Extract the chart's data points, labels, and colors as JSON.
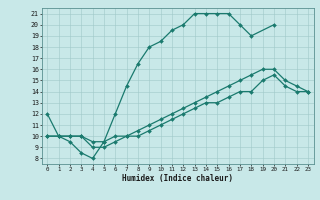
{
  "xlabel": "Humidex (Indice chaleur)",
  "ylabel": "",
  "background_color": "#c8e8e8",
  "line_color": "#1a7a6e",
  "xlim": [
    -0.5,
    23.5
  ],
  "ylim": [
    7.5,
    21.5
  ],
  "xticks": [
    0,
    1,
    2,
    3,
    4,
    5,
    6,
    7,
    8,
    9,
    10,
    11,
    12,
    13,
    14,
    15,
    16,
    17,
    18,
    19,
    20,
    21,
    22,
    23
  ],
  "yticks": [
    8,
    9,
    10,
    11,
    12,
    13,
    14,
    15,
    16,
    17,
    18,
    19,
    20,
    21
  ],
  "line1_x": [
    0,
    1,
    2,
    3,
    4,
    5,
    6,
    7,
    8,
    9,
    10,
    11,
    12,
    13,
    14,
    15,
    16,
    17,
    18,
    20
  ],
  "line1_y": [
    12,
    10,
    9.5,
    8.5,
    8,
    9.5,
    12,
    14.5,
    16.5,
    18,
    18.5,
    19.5,
    20,
    21,
    21,
    21,
    21,
    20,
    19,
    20
  ],
  "line2_x": [
    0,
    1,
    2,
    3,
    4,
    5,
    6,
    7,
    8,
    9,
    10,
    11,
    12,
    13,
    14,
    15,
    16,
    17,
    18,
    19,
    20,
    21,
    22,
    23
  ],
  "line2_y": [
    10,
    10,
    10,
    10,
    9.5,
    9.5,
    10,
    10,
    10.5,
    11,
    11.5,
    12,
    12.5,
    13,
    13.5,
    14,
    14.5,
    15,
    15.5,
    16,
    16,
    15,
    14.5,
    14
  ],
  "line3_x": [
    0,
    1,
    2,
    3,
    4,
    5,
    6,
    7,
    8,
    9,
    10,
    11,
    12,
    13,
    14,
    15,
    16,
    17,
    18,
    19,
    20,
    21,
    22,
    23
  ],
  "line3_y": [
    10,
    10,
    10,
    10,
    9,
    9,
    9.5,
    10,
    10,
    10.5,
    11,
    11.5,
    12,
    12.5,
    13,
    13,
    13.5,
    14,
    14,
    15,
    15.5,
    14.5,
    14,
    14
  ]
}
